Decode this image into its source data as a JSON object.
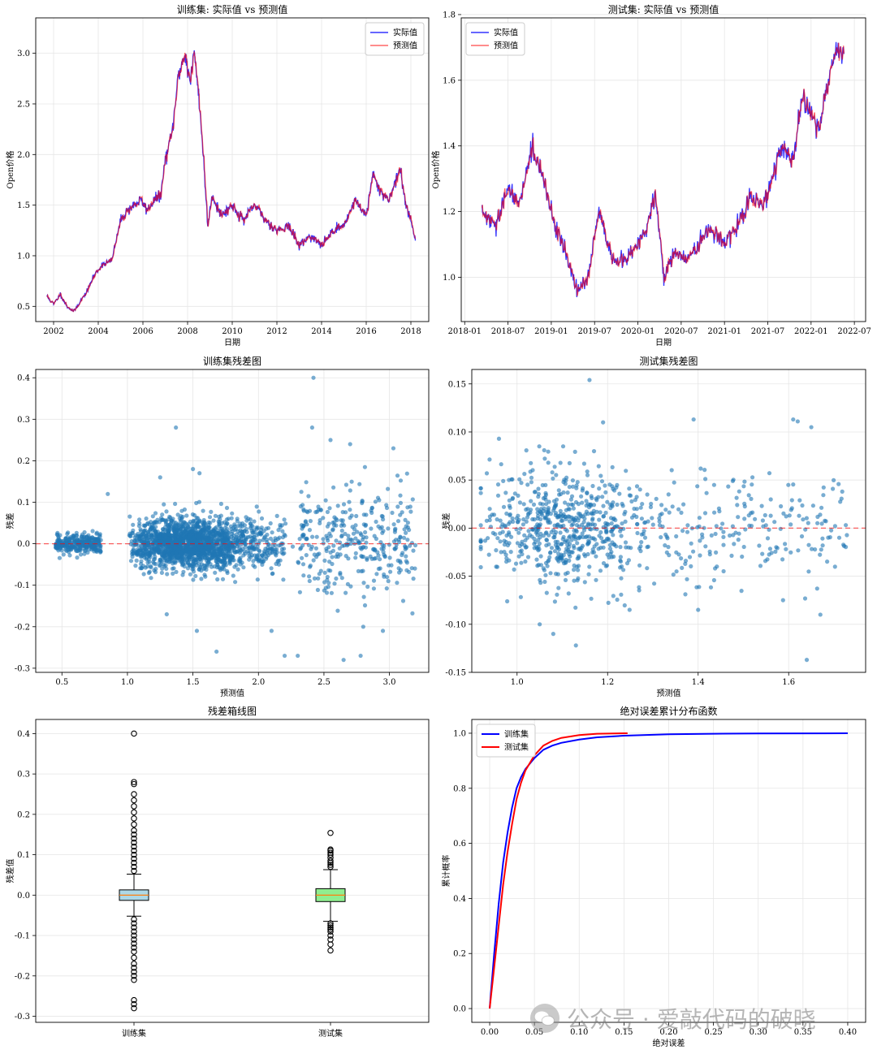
{
  "watermark": "公众号 · 爱敲代码的破晓",
  "colors": {
    "actual": "#0000ff",
    "predicted": "#ff0000",
    "scatter": "#1f77b4",
    "zero": "#ff0000",
    "box1": "#add8e6",
    "box2": "#90ee90",
    "median": "#ff7f0e",
    "grid": "#e6e6e6"
  },
  "chart_data": [
    {
      "id": "train_line",
      "type": "line",
      "title": "训练集: 实际值  vs  预测值",
      "xlabel": "日期",
      "ylabel": "Open价格",
      "xlim": [
        2001.2,
        2018.8
      ],
      "ylim": [
        0.35,
        3.35
      ],
      "xticks": [
        2002,
        2004,
        2006,
        2008,
        2010,
        2012,
        2014,
        2016,
        2018
      ],
      "xtick_labels": [
        "2002",
        "2004",
        "2006",
        "2008",
        "2010",
        "2012",
        "2014",
        "2016",
        "2018"
      ],
      "yticks": [
        0.5,
        1.0,
        1.5,
        2.0,
        2.5,
        3.0
      ],
      "ytick_labels": [
        "0.5",
        "1.0",
        "1.5",
        "2.0",
        "2.5",
        "3.0"
      ],
      "legend": [
        "实际值",
        "预测值"
      ],
      "legend_position": "upper right",
      "anchors": [
        [
          2001.7,
          0.6
        ],
        [
          2002.0,
          0.52
        ],
        [
          2002.3,
          0.62
        ],
        [
          2002.6,
          0.5
        ],
        [
          2002.9,
          0.45
        ],
        [
          2003.2,
          0.55
        ],
        [
          2003.5,
          0.65
        ],
        [
          2003.8,
          0.8
        ],
        [
          2004.2,
          0.92
        ],
        [
          2004.6,
          0.95
        ],
        [
          2005.0,
          1.35
        ],
        [
          2005.3,
          1.45
        ],
        [
          2005.6,
          1.5
        ],
        [
          2005.9,
          1.55
        ],
        [
          2006.2,
          1.45
        ],
        [
          2006.5,
          1.55
        ],
        [
          2006.8,
          1.6
        ],
        [
          2007.0,
          1.95
        ],
        [
          2007.3,
          2.2
        ],
        [
          2007.6,
          2.8
        ],
        [
          2007.9,
          3.0
        ],
        [
          2008.1,
          2.7
        ],
        [
          2008.3,
          3.0
        ],
        [
          2008.5,
          2.6
        ],
        [
          2008.7,
          2.0
        ],
        [
          2008.9,
          1.3
        ],
        [
          2009.1,
          1.6
        ],
        [
          2009.5,
          1.4
        ],
        [
          2010.0,
          1.5
        ],
        [
          2010.5,
          1.35
        ],
        [
          2011.0,
          1.5
        ],
        [
          2011.5,
          1.35
        ],
        [
          2012.0,
          1.25
        ],
        [
          2012.5,
          1.3
        ],
        [
          2013.0,
          1.1
        ],
        [
          2013.5,
          1.2
        ],
        [
          2014.0,
          1.1
        ],
        [
          2014.5,
          1.25
        ],
        [
          2015.0,
          1.3
        ],
        [
          2015.5,
          1.55
        ],
        [
          2016.0,
          1.4
        ],
        [
          2016.3,
          1.8
        ],
        [
          2016.6,
          1.65
        ],
        [
          2017.0,
          1.55
        ],
        [
          2017.5,
          1.85
        ],
        [
          2017.8,
          1.5
        ],
        [
          2018.0,
          1.35
        ],
        [
          2018.2,
          1.15
        ]
      ]
    },
    {
      "id": "test_line",
      "type": "line",
      "title": "测试集: 实际值  vs  预测值",
      "xlabel": "日期",
      "ylabel": "Open价格",
      "xlim": [
        2017.96,
        2022.63
      ],
      "ylim": [
        0.865,
        1.79
      ],
      "xticks": [
        2018.0,
        2018.5,
        2019.0,
        2019.5,
        2020.0,
        2020.5,
        2021.0,
        2021.5,
        2022.0,
        2022.5
      ],
      "xtick_labels": [
        "2018-01",
        "2018-07",
        "2019-01",
        "2019-07",
        "2020-01",
        "2020-07",
        "2021-01",
        "2021-07",
        "2022-01",
        "2022-07"
      ],
      "yticks": [
        1.0,
        1.2,
        1.4,
        1.6,
        1.8
      ],
      "ytick_labels": [
        "1.0",
        "1.2",
        "1.4",
        "1.6",
        "1.8"
      ],
      "legend": [
        "实际值",
        "预测值"
      ],
      "legend_position": "upper left",
      "anchors": [
        [
          2018.2,
          1.2
        ],
        [
          2018.35,
          1.15
        ],
        [
          2018.5,
          1.27
        ],
        [
          2018.62,
          1.22
        ],
        [
          2018.78,
          1.4
        ],
        [
          2018.9,
          1.3
        ],
        [
          2019.0,
          1.2
        ],
        [
          2019.1,
          1.12
        ],
        [
          2019.2,
          1.05
        ],
        [
          2019.3,
          0.95
        ],
        [
          2019.42,
          1.0
        ],
        [
          2019.55,
          1.2
        ],
        [
          2019.7,
          1.05
        ],
        [
          2019.85,
          1.05
        ],
        [
          2020.0,
          1.1
        ],
        [
          2020.1,
          1.15
        ],
        [
          2020.2,
          1.25
        ],
        [
          2020.3,
          1.0
        ],
        [
          2020.42,
          1.08
        ],
        [
          2020.55,
          1.05
        ],
        [
          2020.7,
          1.1
        ],
        [
          2020.85,
          1.15
        ],
        [
          2021.0,
          1.1
        ],
        [
          2021.15,
          1.15
        ],
        [
          2021.3,
          1.25
        ],
        [
          2021.45,
          1.22
        ],
        [
          2021.55,
          1.3
        ],
        [
          2021.65,
          1.4
        ],
        [
          2021.8,
          1.35
        ],
        [
          2021.9,
          1.55
        ],
        [
          2022.0,
          1.5
        ],
        [
          2022.1,
          1.45
        ],
        [
          2022.2,
          1.6
        ],
        [
          2022.3,
          1.7
        ],
        [
          2022.38,
          1.68
        ]
      ]
    },
    {
      "id": "train_resid",
      "type": "scatter",
      "title": "训练集残差图",
      "xlabel": "预测值",
      "ylabel": "残差",
      "xlim": [
        0.3,
        3.3
      ],
      "ylim": [
        -0.31,
        0.42
      ],
      "xticks": [
        0.5,
        1.0,
        1.5,
        2.0,
        2.5,
        3.0
      ],
      "xtick_labels": [
        "0.5",
        "1.0",
        "1.5",
        "2.0",
        "2.5",
        "3.0"
      ],
      "yticks": [
        -0.3,
        -0.2,
        -0.1,
        0.0,
        0.1,
        0.2,
        0.3,
        0.4
      ],
      "ytick_labels": [
        "-0.3",
        "-0.2",
        "-0.1",
        "0.0",
        "0.1",
        "0.2",
        "0.3",
        "0.4"
      ],
      "zero_line": 0.0,
      "n_points": 2500,
      "outliers": [
        [
          2.42,
          0.4
        ],
        [
          1.37,
          0.28
        ],
        [
          2.41,
          0.28
        ],
        [
          2.55,
          0.25
        ],
        [
          2.7,
          0.24
        ],
        [
          3.03,
          0.23
        ],
        [
          1.55,
          0.17
        ],
        [
          1.5,
          0.18
        ],
        [
          1.25,
          0.16
        ],
        [
          2.8,
          -0.2
        ],
        [
          2.95,
          -0.21
        ],
        [
          2.2,
          -0.27
        ],
        [
          2.3,
          -0.27
        ],
        [
          2.65,
          -0.28
        ],
        [
          2.78,
          -0.27
        ],
        [
          1.68,
          -0.26
        ],
        [
          1.53,
          -0.21
        ],
        [
          1.3,
          -0.17
        ],
        [
          0.85,
          0.12
        ],
        [
          2.1,
          -0.21
        ]
      ]
    },
    {
      "id": "test_resid",
      "type": "scatter",
      "title": "测试集残差图",
      "xlabel": "预测值",
      "ylabel": "残差",
      "xlim": [
        0.9,
        1.77
      ],
      "ylim": [
        -0.15,
        0.165
      ],
      "xticks": [
        1.0,
        1.2,
        1.4,
        1.6
      ],
      "xtick_labels": [
        "1.0",
        "1.2",
        "1.4",
        "1.6"
      ],
      "yticks": [
        -0.15,
        -0.1,
        -0.05,
        0.0,
        0.05,
        0.1,
        0.15
      ],
      "ytick_labels": [
        "-0.15",
        "-0.10",
        "-0.05",
        "0.00",
        "0.05",
        "0.10",
        "0.15"
      ],
      "zero_line": 0.0,
      "n_points": 850,
      "outliers": [
        [
          1.16,
          0.154
        ],
        [
          1.19,
          0.11
        ],
        [
          1.39,
          0.113
        ],
        [
          1.61,
          0.113
        ],
        [
          1.62,
          0.111
        ],
        [
          1.65,
          0.105
        ],
        [
          0.96,
          0.093
        ],
        [
          1.06,
          0.081
        ],
        [
          1.17,
          0.08
        ],
        [
          1.13,
          -0.122
        ],
        [
          1.64,
          -0.137
        ],
        [
          1.08,
          -0.11
        ],
        [
          1.05,
          -0.1
        ],
        [
          1.4,
          -0.085
        ],
        [
          1.67,
          -0.09
        ]
      ]
    },
    {
      "id": "resid_box",
      "type": "box",
      "title": "残差箱线图",
      "ylabel": "残差值",
      "ylim": [
        -0.315,
        0.435
      ],
      "yticks": [
        -0.3,
        -0.2,
        -0.1,
        0.0,
        0.1,
        0.2,
        0.3,
        0.4
      ],
      "ytick_labels": [
        "-0.3",
        "-0.2",
        "-0.1",
        "0.0",
        "0.1",
        "0.2",
        "0.3",
        "0.4"
      ],
      "categories": [
        "训练集",
        "测试集"
      ],
      "boxes": [
        {
          "q1": -0.013,
          "median": 0.0,
          "q3": 0.013,
          "whisker_low": -0.052,
          "whisker_high": 0.052,
          "fliers": [
            0.4,
            0.28,
            0.275,
            0.25,
            0.235,
            0.22,
            0.205,
            0.19,
            0.175,
            0.16,
            0.15,
            0.14,
            0.13,
            0.12,
            0.11,
            0.1,
            0.09,
            0.08,
            0.07,
            0.06,
            -0.06,
            -0.07,
            -0.08,
            -0.09,
            -0.1,
            -0.11,
            -0.12,
            -0.13,
            -0.14,
            -0.155,
            -0.17,
            -0.18,
            -0.19,
            -0.2,
            -0.21,
            -0.26,
            -0.27,
            -0.28
          ]
        },
        {
          "q1": -0.016,
          "median": 0.0,
          "q3": 0.016,
          "whisker_low": -0.065,
          "whisker_high": 0.063,
          "fliers": [
            0.154,
            0.113,
            0.11,
            0.105,
            0.1,
            0.093,
            0.085,
            0.08,
            0.075,
            0.07,
            -0.07,
            -0.075,
            -0.08,
            -0.085,
            -0.09,
            -0.1,
            -0.11,
            -0.122,
            -0.137
          ]
        }
      ]
    },
    {
      "id": "abs_err_cdf",
      "type": "line",
      "title": "绝对误差累计分布函数",
      "xlabel": "绝对误差",
      "ylabel": "累计概率",
      "xlim": [
        -0.02,
        0.42
      ],
      "ylim": [
        -0.05,
        1.05
      ],
      "xticks": [
        0.0,
        0.05,
        0.1,
        0.15,
        0.2,
        0.25,
        0.3,
        0.35,
        0.4
      ],
      "xtick_labels": [
        "0.00",
        "0.05",
        "0.10",
        "0.15",
        "0.20",
        "0.25",
        "0.30",
        "0.35",
        "0.40"
      ],
      "yticks": [
        0.0,
        0.2,
        0.4,
        0.6,
        0.8,
        1.0
      ],
      "ytick_labels": [
        "0.0",
        "0.2",
        "0.4",
        "0.6",
        "0.8",
        "1.0"
      ],
      "legend": [
        "训练集",
        "测试集"
      ],
      "legend_position": "upper left",
      "series": [
        {
          "name": "训练集",
          "color": "#0000ff",
          "points": [
            [
              0,
              0
            ],
            [
              0.005,
              0.2
            ],
            [
              0.01,
              0.38
            ],
            [
              0.015,
              0.53
            ],
            [
              0.02,
              0.64
            ],
            [
              0.025,
              0.73
            ],
            [
              0.03,
              0.8
            ],
            [
              0.035,
              0.84
            ],
            [
              0.04,
              0.87
            ],
            [
              0.05,
              0.91
            ],
            [
              0.06,
              0.94
            ],
            [
              0.07,
              0.955
            ],
            [
              0.08,
              0.965
            ],
            [
              0.1,
              0.977
            ],
            [
              0.12,
              0.985
            ],
            [
              0.15,
              0.991
            ],
            [
              0.2,
              0.996
            ],
            [
              0.25,
              0.998
            ],
            [
              0.3,
              0.999
            ],
            [
              0.4,
              1.0
            ]
          ]
        },
        {
          "name": "测试集",
          "color": "#ff0000",
          "points": [
            [
              0,
              0
            ],
            [
              0.005,
              0.15
            ],
            [
              0.01,
              0.3
            ],
            [
              0.015,
              0.45
            ],
            [
              0.02,
              0.57
            ],
            [
              0.025,
              0.67
            ],
            [
              0.03,
              0.76
            ],
            [
              0.035,
              0.82
            ],
            [
              0.04,
              0.865
            ],
            [
              0.05,
              0.92
            ],
            [
              0.06,
              0.955
            ],
            [
              0.07,
              0.972
            ],
            [
              0.08,
              0.983
            ],
            [
              0.1,
              0.993
            ],
            [
              0.12,
              0.998
            ],
            [
              0.154,
              1.0
            ]
          ]
        }
      ]
    }
  ]
}
